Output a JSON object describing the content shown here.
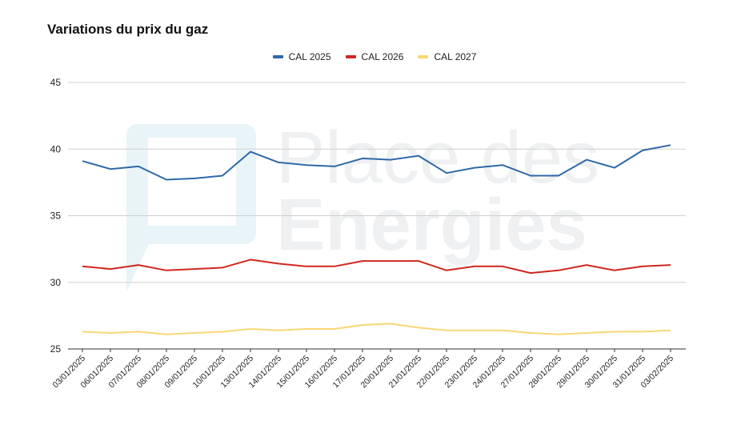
{
  "watermark": {
    "line1": "Place des",
    "line2": "Energies"
  },
  "chart_data": {
    "type": "line",
    "title": "Variations du prix du gaz",
    "xlabel": "",
    "ylabel": "",
    "ylim": [
      25,
      45
    ],
    "yticks": [
      25,
      30,
      35,
      40,
      45
    ],
    "grid": true,
    "legend_position": "top",
    "categories": [
      "03/01/2025",
      "06/01/2025",
      "07/01/2025",
      "08/01/2025",
      "09/01/2025",
      "10/01/2025",
      "13/01/2025",
      "14/01/2025",
      "15/01/2025",
      "16/01/2025",
      "17/01/2025",
      "20/01/2025",
      "21/01/2025",
      "22/01/2025",
      "23/01/2025",
      "24/01/2025",
      "27/01/2025",
      "28/01/2025",
      "29/01/2025",
      "30/01/2025",
      "31/01/2025",
      "03/02/2025"
    ],
    "series": [
      {
        "name": "CAL 2025",
        "color": "#2f68a8",
        "values": [
          39.1,
          38.5,
          38.7,
          37.7,
          37.8,
          38.0,
          39.8,
          39.0,
          38.8,
          38.7,
          39.3,
          39.2,
          39.5,
          38.2,
          38.6,
          38.8,
          38.0,
          38.0,
          39.2,
          38.6,
          39.9,
          40.3
        ]
      },
      {
        "name": "CAL 2026",
        "color": "#d0271e",
        "values": [
          31.2,
          31.0,
          31.3,
          30.9,
          31.0,
          31.1,
          31.7,
          31.4,
          31.2,
          31.2,
          31.6,
          31.6,
          31.6,
          30.9,
          31.2,
          31.2,
          30.7,
          30.9,
          31.3,
          30.9,
          31.2,
          31.3
        ]
      },
      {
        "name": "CAL 2027",
        "color": "#f8d773",
        "values": [
          26.3,
          26.2,
          26.3,
          26.1,
          26.2,
          26.3,
          26.5,
          26.4,
          26.5,
          26.5,
          26.8,
          26.9,
          26.6,
          26.4,
          26.4,
          26.4,
          26.2,
          26.1,
          26.2,
          26.3,
          26.3,
          26.4
        ]
      }
    ]
  }
}
